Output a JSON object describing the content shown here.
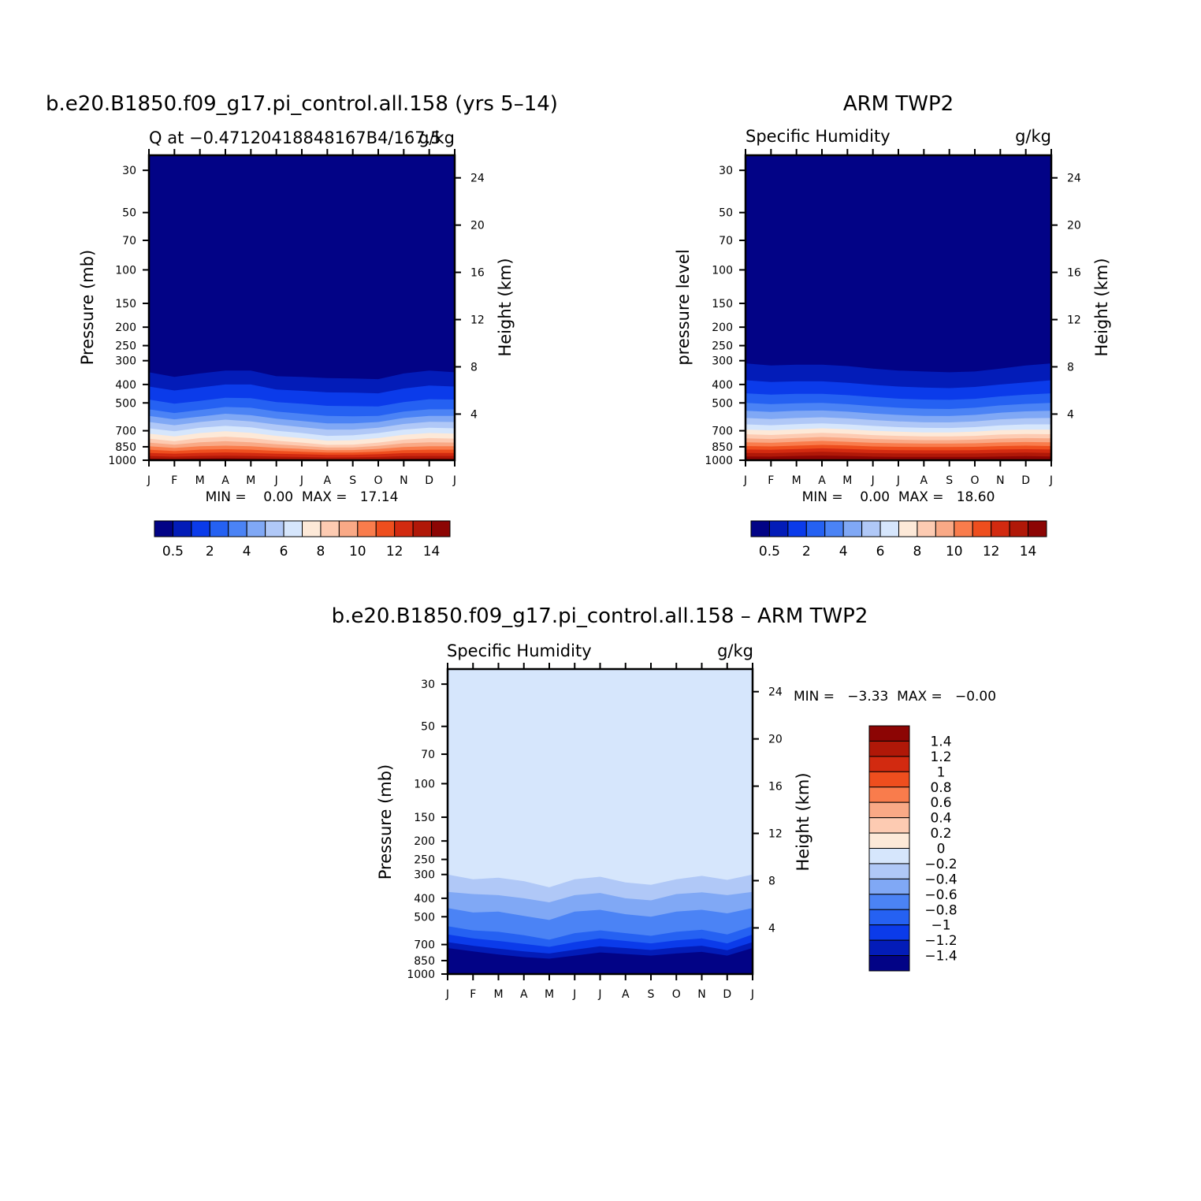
{
  "figure": {
    "bottom_title": "b.e20.B1850.f09_g17.pi_control.all.158 – ARM TWP2"
  },
  "palettes": {
    "abs": [
      "#020386",
      "#031cb8",
      "#0b3bea",
      "#2561f2",
      "#4b83f5",
      "#80a8f5",
      "#b0c8f7",
      "#d6e6fc",
      "#fde9d8",
      "#fdcbb2",
      "#f9a986",
      "#f97c4c",
      "#ee4e1e",
      "#d22a10",
      "#b01808",
      "#8c0504"
    ],
    "diff": [
      "#8c0504",
      "#b01808",
      "#d22a10",
      "#ee4e1e",
      "#f97c4c",
      "#f9a986",
      "#fdcbb2",
      "#fde9d8",
      "#d6e6fc",
      "#b0c8f7",
      "#80a8f5",
      "#4b83f5",
      "#2561f2",
      "#0b3bea",
      "#031cb8",
      "#020386"
    ]
  },
  "chart_data": [
    {
      "type": "heatmap",
      "title": "b.e20.B1850.f09_g17.pi_control.all.158 (yrs 5–14)",
      "subtitle_left": "Q at −0.47120418848167B4/167.5",
      "subtitle_right": "g/kg",
      "ylabel": "Pressure (mb)",
      "ylabel_right": "Height (km)",
      "x_ticks": [
        "J",
        "F",
        "M",
        "A",
        "M",
        "J",
        "J",
        "A",
        "S",
        "O",
        "N",
        "D",
        "J"
      ],
      "y_ticks": [
        30,
        50,
        70,
        100,
        150,
        200,
        250,
        300,
        400,
        500,
        700,
        850,
        1000
      ],
      "y_scale": "log",
      "ylim": [
        1000,
        25
      ],
      "height_ticks": [
        4,
        8,
        12,
        16,
        20,
        24
      ],
      "stats": "MIN =    0.00  MAX =   17.14",
      "colorbar_labels": [
        "0.5",
        "2",
        "4",
        "6",
        "8",
        "10",
        "12",
        "14"
      ],
      "contour_levels": [
        0.5,
        1,
        2,
        3,
        4,
        5,
        6,
        7,
        8,
        9,
        10,
        11,
        12,
        13,
        14
      ],
      "months": [
        1,
        2,
        3,
        4,
        5,
        6,
        7,
        8,
        9,
        10,
        11,
        12,
        13
      ],
      "pressure_at_threshold": [
        {
          "level": 0.5,
          "p": [
            345,
            365,
            350,
            338,
            338,
            362,
            365,
            370,
            372,
            375,
            350,
            338,
            345
          ]
        },
        {
          "level": 1,
          "p": [
            410,
            430,
            415,
            400,
            400,
            425,
            432,
            440,
            442,
            445,
            420,
            405,
            410
          ]
        },
        {
          "level": 2,
          "p": [
            480,
            505,
            488,
            470,
            472,
            495,
            505,
            518,
            520,
            522,
            495,
            478,
            480
          ]
        },
        {
          "level": 3,
          "p": [
            540,
            565,
            545,
            525,
            530,
            555,
            570,
            585,
            588,
            585,
            555,
            540,
            540
          ]
        },
        {
          "level": 4,
          "p": [
            585,
            610,
            590,
            570,
            580,
            605,
            622,
            640,
            640,
            630,
            600,
            585,
            585
          ]
        },
        {
          "level": 5,
          "p": [
            630,
            655,
            630,
            612,
            625,
            650,
            670,
            690,
            690,
            675,
            645,
            628,
            630
          ]
        },
        {
          "level": 6,
          "p": [
            680,
            705,
            675,
            660,
            672,
            700,
            720,
            745,
            740,
            720,
            690,
            675,
            680
          ]
        },
        {
          "level": 7,
          "p": [
            725,
            750,
            720,
            705,
            718,
            745,
            765,
            790,
            785,
            765,
            735,
            720,
            725
          ]
        },
        {
          "level": 8,
          "p": [
            770,
            795,
            765,
            752,
            765,
            790,
            808,
            830,
            828,
            808,
            780,
            765,
            770
          ]
        },
        {
          "level": 9,
          "p": [
            808,
            828,
            805,
            795,
            805,
            825,
            840,
            858,
            856,
            840,
            815,
            805,
            808
          ]
        },
        {
          "level": 10,
          "p": [
            845,
            862,
            845,
            838,
            845,
            860,
            872,
            885,
            884,
            872,
            852,
            845,
            845
          ]
        },
        {
          "level": 11,
          "p": [
            880,
            895,
            880,
            875,
            880,
            893,
            902,
            912,
            911,
            902,
            886,
            880,
            880
          ]
        },
        {
          "level": 12,
          "p": [
            915,
            925,
            915,
            910,
            915,
            924,
            930,
            938,
            937,
            930,
            918,
            915,
            915
          ]
        },
        {
          "level": 13,
          "p": [
            950,
            958,
            950,
            946,
            950,
            957,
            962,
            967,
            966,
            962,
            952,
            950,
            950
          ]
        },
        {
          "level": 14,
          "p": [
            980,
            985,
            978,
            975,
            978,
            984,
            988,
            992,
            991,
            988,
            982,
            978,
            980
          ]
        }
      ]
    },
    {
      "type": "heatmap",
      "title": "ARM TWP2",
      "subtitle_left": "Specific Humidity",
      "subtitle_right": "g/kg",
      "ylabel": "pressure level",
      "ylabel_right": "Height (km)",
      "x_ticks": [
        "J",
        "F",
        "M",
        "A",
        "M",
        "J",
        "J",
        "A",
        "S",
        "O",
        "N",
        "D",
        "J"
      ],
      "y_ticks": [
        30,
        50,
        70,
        100,
        150,
        200,
        250,
        300,
        400,
        500,
        700,
        850,
        1000
      ],
      "y_scale": "log",
      "ylim": [
        1000,
        25
      ],
      "height_ticks": [
        4,
        8,
        12,
        16,
        20,
        24
      ],
      "stats": "MIN =    0.00  MAX =   18.60",
      "colorbar_labels": [
        "0.5",
        "2",
        "4",
        "6",
        "8",
        "10",
        "12",
        "14"
      ],
      "contour_levels": [
        0.5,
        1,
        2,
        3,
        4,
        5,
        6,
        7,
        8,
        9,
        10,
        11,
        12,
        13,
        14
      ],
      "months": [
        1,
        2,
        3,
        4,
        5,
        6,
        7,
        8,
        9,
        10,
        11,
        12,
        13
      ],
      "pressure_at_threshold": [
        {
          "level": 0.5,
          "p": [
            310,
            318,
            315,
            315,
            320,
            330,
            338,
            342,
            345,
            342,
            330,
            318,
            310
          ]
        },
        {
          "level": 1,
          "p": [
            380,
            388,
            385,
            385,
            392,
            402,
            410,
            415,
            418,
            412,
            400,
            390,
            380
          ]
        },
        {
          "level": 2,
          "p": [
            445,
            452,
            448,
            448,
            455,
            465,
            475,
            480,
            482,
            476,
            462,
            452,
            445
          ]
        },
        {
          "level": 3,
          "p": [
            500,
            508,
            502,
            500,
            508,
            520,
            530,
            536,
            538,
            530,
            515,
            506,
            500
          ]
        },
        {
          "level": 4,
          "p": [
            550,
            558,
            550,
            548,
            556,
            568,
            578,
            585,
            586,
            578,
            563,
            554,
            550
          ]
        },
        {
          "level": 5,
          "p": [
            600,
            608,
            600,
            595,
            603,
            615,
            625,
            632,
            633,
            625,
            610,
            602,
            600
          ]
        },
        {
          "level": 6,
          "p": [
            648,
            655,
            646,
            640,
            648,
            660,
            670,
            676,
            677,
            670,
            656,
            648,
            648
          ]
        },
        {
          "level": 7,
          "p": [
            690,
            697,
            688,
            680,
            688,
            700,
            708,
            714,
            715,
            708,
            695,
            690,
            690
          ]
        },
        {
          "level": 8,
          "p": [
            730,
            737,
            727,
            718,
            726,
            738,
            745,
            750,
            750,
            745,
            733,
            728,
            730
          ]
        },
        {
          "level": 9,
          "p": [
            768,
            774,
            764,
            755,
            763,
            774,
            780,
            784,
            784,
            780,
            770,
            765,
            768
          ]
        },
        {
          "level": 10,
          "p": [
            805,
            810,
            800,
            792,
            800,
            810,
            815,
            818,
            818,
            815,
            806,
            802,
            805
          ]
        },
        {
          "level": 11,
          "p": [
            842,
            846,
            838,
            830,
            837,
            846,
            850,
            852,
            852,
            850,
            842,
            838,
            842
          ]
        },
        {
          "level": 12,
          "p": [
            878,
            882,
            874,
            866,
            873,
            881,
            885,
            887,
            887,
            885,
            878,
            875,
            878
          ]
        },
        {
          "level": 13,
          "p": [
            915,
            918,
            910,
            903,
            910,
            918,
            921,
            922,
            922,
            921,
            915,
            912,
            915
          ]
        },
        {
          "level": 14,
          "p": [
            955,
            957,
            950,
            945,
            950,
            957,
            960,
            961,
            961,
            960,
            955,
            952,
            955
          ]
        }
      ]
    },
    {
      "type": "heatmap",
      "title": "b.e20.B1850.f09_g17.pi_control.all.158 – ARM TWP2",
      "subtitle_left": "Specific Humidity",
      "subtitle_right": "g/kg",
      "ylabel": "Pressure (mb)",
      "ylabel_right": "Height (km)",
      "x_ticks": [
        "J",
        "F",
        "M",
        "A",
        "M",
        "J",
        "J",
        "A",
        "S",
        "O",
        "N",
        "D",
        "J"
      ],
      "y_ticks": [
        30,
        50,
        70,
        100,
        150,
        200,
        250,
        300,
        400,
        500,
        700,
        850,
        1000
      ],
      "y_scale": "log",
      "ylim": [
        1000,
        25
      ],
      "height_ticks": [
        4,
        8,
        12,
        16,
        20,
        24
      ],
      "stats": "MIN =   −3.33  MAX =   −0.00",
      "colorbar_labels": [
        "1.4",
        "1.2",
        "1",
        "0.8",
        "0.6",
        "0.4",
        "0.2",
        "0",
        "−0.2",
        "−0.4",
        "−0.6",
        "−0.8",
        "−1",
        "−1.2",
        "−1.4"
      ],
      "contour_levels": [
        -1.4,
        -1.2,
        -1,
        -0.8,
        -0.6,
        -0.4,
        -0.2,
        0,
        0.2,
        0.4,
        0.6,
        0.8,
        1,
        1.2,
        1.4
      ],
      "months": [
        1,
        2,
        3,
        4,
        5,
        6,
        7,
        8,
        9,
        10,
        11,
        12,
        13
      ],
      "pressure_at_threshold": [
        {
          "level": -0.2,
          "p": [
            300,
            318,
            312,
            325,
            350,
            318,
            308,
            330,
            340,
            318,
            305,
            320,
            300
          ]
        },
        {
          "level": -0.4,
          "p": [
            370,
            380,
            385,
            400,
            420,
            385,
            375,
            400,
            410,
            380,
            372,
            385,
            370
          ]
        },
        {
          "level": -0.6,
          "p": [
            450,
            475,
            470,
            495,
            520,
            470,
            460,
            485,
            500,
            470,
            460,
            480,
            450
          ]
        },
        {
          "level": -0.8,
          "p": [
            560,
            590,
            600,
            625,
            660,
            610,
            590,
            610,
            630,
            600,
            585,
            620,
            560
          ]
        },
        {
          "level": -1,
          "p": [
            620,
            650,
            670,
            695,
            720,
            680,
            650,
            670,
            690,
            665,
            650,
            690,
            620
          ]
        },
        {
          "level": -1.2,
          "p": [
            680,
            710,
            735,
            760,
            780,
            745,
            715,
            730,
            748,
            725,
            710,
            750,
            680
          ]
        },
        {
          "level": -1.4,
          "p": [
            730,
            760,
            790,
            815,
            830,
            800,
            770,
            785,
            800,
            780,
            765,
            800,
            730
          ]
        }
      ]
    }
  ]
}
